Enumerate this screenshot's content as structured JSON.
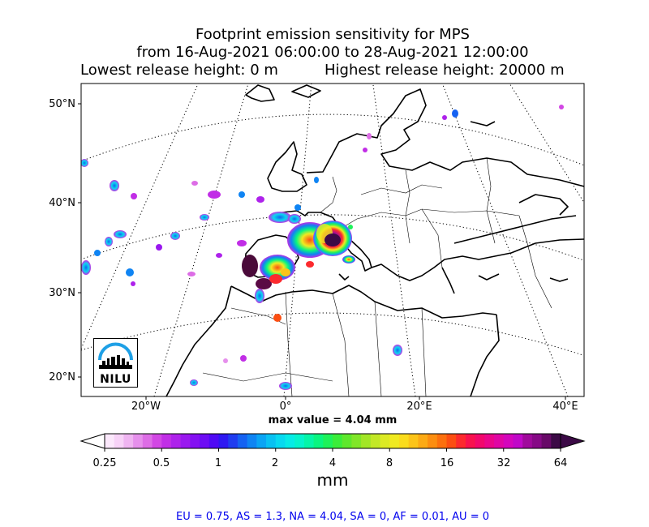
{
  "title": {
    "line1": "Footprint emission sensitivity for MPS",
    "line2": "from 16-Aug-2021 06:00:00 to 28-Aug-2021 12:00:00",
    "lowest": "Lowest release height: 0 m",
    "highest": "Highest release height: 20000 m"
  },
  "axes": {
    "lat_labels": [
      "50°N",
      "40°N",
      "30°N",
      "20°N"
    ],
    "lon_labels": [
      "20°W",
      "0°",
      "20°E",
      "40°E"
    ]
  },
  "max_value_text": "max value = 4.04 mm",
  "colorbar": {
    "ticks": [
      "0.25",
      "0.5",
      "1",
      "2",
      "4",
      "8",
      "16",
      "32",
      "64"
    ],
    "unit": "mm",
    "colors": [
      "#fbe8fb",
      "#f7d2f7",
      "#efb4f1",
      "#e690ec",
      "#dd6de6",
      "#d247e4",
      "#c12ee6",
      "#ae22eb",
      "#9a18ef",
      "#8410f2",
      "#6d0cf4",
      "#4f0af5",
      "#2e18f2",
      "#1f3cf0",
      "#1562f2",
      "#0f84f3",
      "#0aa4f4",
      "#08c1f2",
      "#07d9f0",
      "#06ebe6",
      "#05f3cc",
      "#05f5a8",
      "#0af580",
      "#1ef25a",
      "#3aed3a",
      "#5ee82c",
      "#80e628",
      "#a2e626",
      "#c2e826",
      "#dcea24",
      "#f0ea20",
      "#fadc1c",
      "#fcc418",
      "#fcaa14",
      "#fc8e10",
      "#fc700e",
      "#fc4e12",
      "#fc2a2e",
      "#f8124e",
      "#f2086c",
      "#ea068a",
      "#e006a4",
      "#d406bc",
      "#c008c8",
      "#a00a9c",
      "#860a86",
      "#680a68",
      "#3c0a46"
    ]
  },
  "footer": "EU = 0.75,  AS = 1.3,  NA = 4.04,  SA = 0,  AF = 0.01,  AU = 0",
  "logo": {
    "text": "NILU",
    "ring_color": "#1ea0e6"
  },
  "map": {
    "projection": "stereographic",
    "lat_range": [
      18,
      52
    ],
    "lon_range": [
      -30,
      45
    ],
    "gridlines": "dotted",
    "footprint_blobs": [
      {
        "lat": 38.5,
        "lon": 2,
        "level": "high",
        "color": "#5a0a52"
      },
      {
        "lat": 37,
        "lon": 8,
        "level": "high",
        "color": "#7a0a6a"
      },
      {
        "lat": 34.5,
        "lon": -4,
        "level": "high",
        "color": "#4a0a3a"
      },
      {
        "lat": 31.5,
        "lon": -2.5,
        "level": "high",
        "color": "#5a0a44"
      },
      {
        "lat": 36,
        "lon": 0,
        "level": "medium",
        "color": "#f2086c"
      },
      {
        "lat": 38,
        "lon": 5,
        "level": "medium",
        "color": "#fc4e12"
      },
      {
        "lat": 40.5,
        "lon": 3,
        "level": "low",
        "color": "#0f84f3"
      },
      {
        "lat": 39,
        "lon": -12,
        "level": "low",
        "color": "#ae22eb"
      }
    ]
  }
}
